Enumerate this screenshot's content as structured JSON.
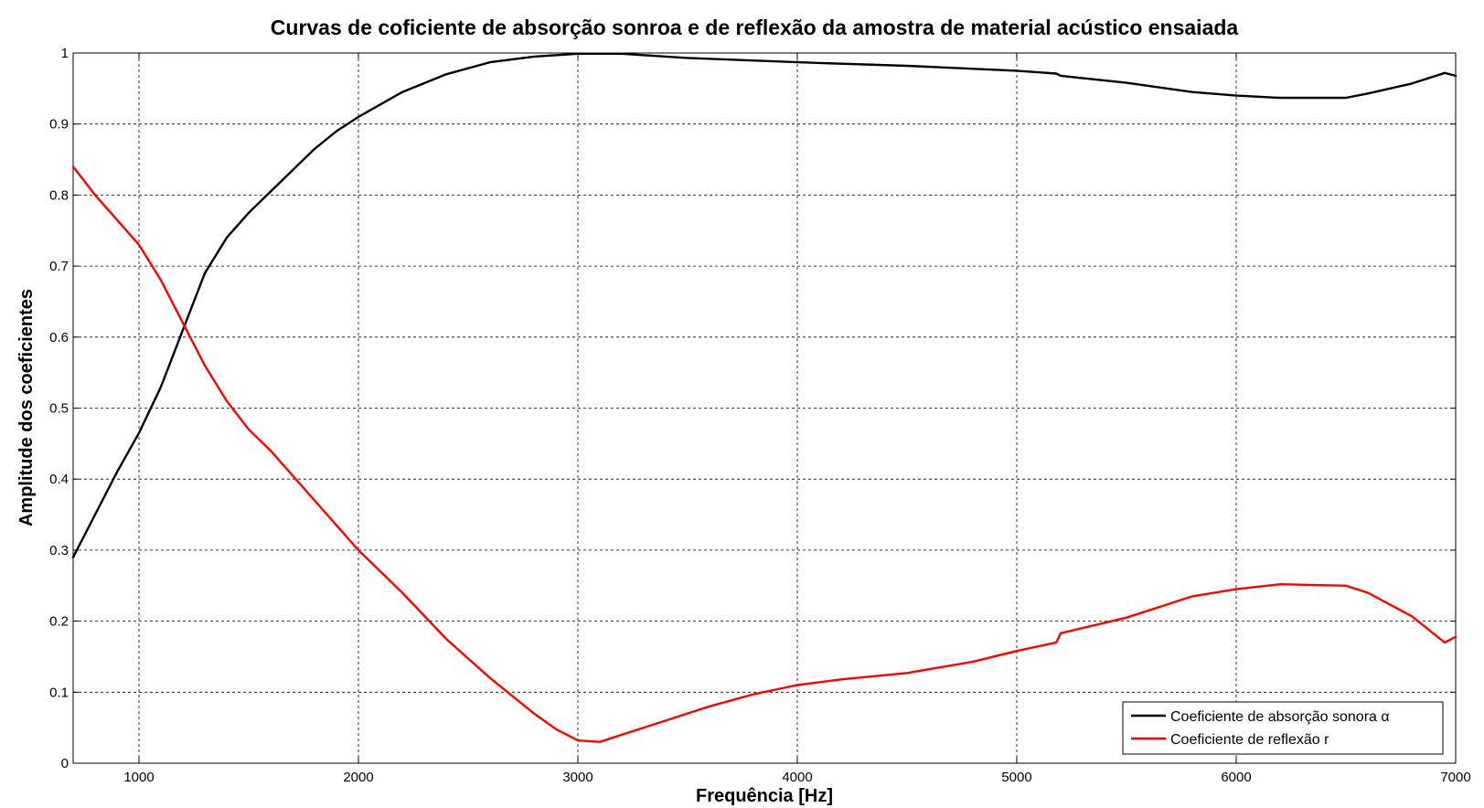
{
  "chart_data": {
    "type": "line",
    "title": "Curvas de coficiente de absorção sonroa e de reflexão da amostra de material acústico ensaiada",
    "xlabel": "Frequência [Hz]",
    "ylabel": "Amplitude dos coeficientes",
    "xlim": [
      700,
      7000
    ],
    "ylim": [
      0,
      1
    ],
    "xticks": [
      1000,
      2000,
      3000,
      4000,
      5000,
      6000,
      7000
    ],
    "yticks": [
      0,
      0.1,
      0.2,
      0.3,
      0.4,
      0.5,
      0.6,
      0.7,
      0.8,
      0.9,
      1
    ],
    "ytick_labels": [
      "0",
      "0.1",
      "0.2",
      "0.3",
      "0.4",
      "0.5",
      "0.6",
      "0.7",
      "0.8",
      "0.9",
      "1"
    ],
    "grid": true,
    "legend_position": "bottom-right",
    "series": [
      {
        "name": "Coeficiente de absorção sonora α",
        "color": "#000000",
        "x": [
          700,
          800,
          900,
          1000,
          1100,
          1200,
          1300,
          1400,
          1500,
          1600,
          1700,
          1800,
          1900,
          2000,
          2200,
          2400,
          2600,
          2800,
          3000,
          3200,
          3500,
          4000,
          4500,
          5000,
          5180,
          5200,
          5500,
          5800,
          6000,
          6200,
          6500,
          6600,
          6800,
          6950,
          7000
        ],
        "y": [
          0.29,
          0.35,
          0.41,
          0.465,
          0.53,
          0.61,
          0.69,
          0.74,
          0.775,
          0.805,
          0.835,
          0.865,
          0.89,
          0.91,
          0.945,
          0.97,
          0.987,
          0.995,
          0.999,
          0.999,
          0.993,
          0.987,
          0.982,
          0.975,
          0.971,
          0.968,
          0.958,
          0.945,
          0.94,
          0.937,
          0.937,
          0.943,
          0.957,
          0.972,
          0.968
        ]
      },
      {
        "name": "Coeficiente de reflexão r",
        "color": "#ff0000",
        "x": [
          700,
          800,
          900,
          1000,
          1100,
          1200,
          1300,
          1400,
          1500,
          1600,
          1700,
          1800,
          1900,
          2000,
          2200,
          2400,
          2600,
          2800,
          2900,
          3000,
          3100,
          3200,
          3400,
          3600,
          3800,
          4000,
          4200,
          4500,
          4800,
          5000,
          5180,
          5200,
          5500,
          5800,
          6000,
          6200,
          6500,
          6600,
          6800,
          6950,
          7000
        ],
        "y": [
          0.84,
          0.8,
          0.765,
          0.73,
          0.68,
          0.62,
          0.56,
          0.51,
          0.47,
          0.44,
          0.405,
          0.37,
          0.335,
          0.3,
          0.24,
          0.175,
          0.12,
          0.07,
          0.048,
          0.032,
          0.03,
          0.04,
          0.06,
          0.08,
          0.097,
          0.11,
          0.118,
          0.127,
          0.143,
          0.158,
          0.17,
          0.183,
          0.205,
          0.235,
          0.245,
          0.252,
          0.25,
          0.24,
          0.207,
          0.17,
          0.178
        ]
      }
    ]
  }
}
